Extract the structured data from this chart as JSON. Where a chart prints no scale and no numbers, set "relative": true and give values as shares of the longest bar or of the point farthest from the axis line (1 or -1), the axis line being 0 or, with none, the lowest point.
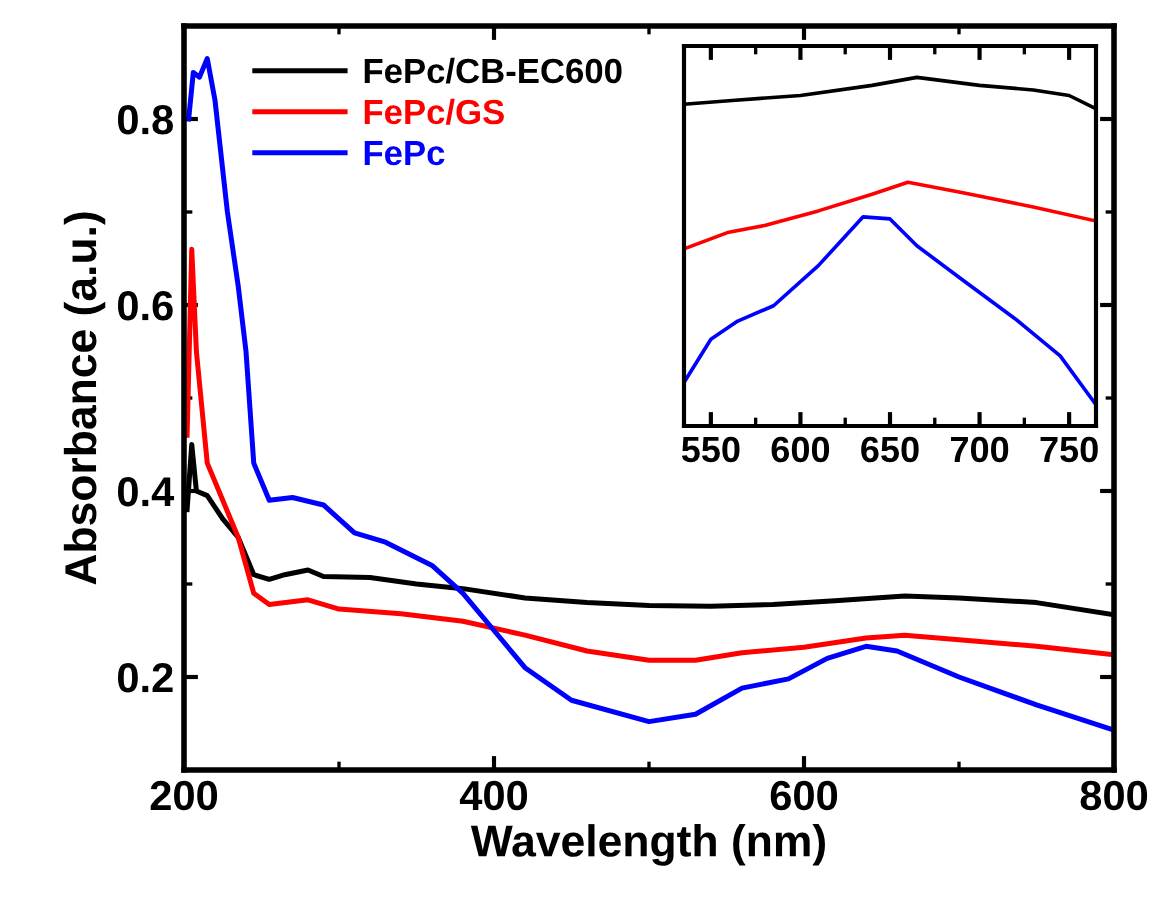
{
  "chart_data": [
    {
      "type": "line",
      "xlabel": "Wavelength (nm)",
      "ylabel": "Absorbance (a.u.)",
      "xlim": [
        200,
        800
      ],
      "xticks": [
        200,
        400,
        600,
        800
      ],
      "ylim": [
        0.1,
        0.9
      ],
      "yticks": [
        0.2,
        0.4,
        0.6,
        0.8
      ],
      "legend": "top left",
      "grid": false,
      "series": [
        {
          "name": "FePc/CB-EC600",
          "color": "#000000",
          "x": [
            202,
            205,
            208,
            215,
            225,
            235,
            245,
            255,
            265,
            280,
            290,
            320,
            350,
            380,
            420,
            460,
            500,
            540,
            580,
            620,
            665,
            700,
            750,
            800
          ],
          "values": [
            0.38,
            0.45,
            0.4,
            0.395,
            0.37,
            0.35,
            0.31,
            0.305,
            0.31,
            0.315,
            0.308,
            0.307,
            0.3,
            0.295,
            0.285,
            0.28,
            0.277,
            0.276,
            0.278,
            0.282,
            0.287,
            0.285,
            0.28,
            0.267
          ]
        },
        {
          "name": "FePc/GS",
          "color": "#ff0000",
          "x": [
            202,
            205,
            208,
            215,
            225,
            235,
            245,
            255,
            280,
            300,
            340,
            380,
            420,
            460,
            500,
            530,
            560,
            600,
            640,
            665,
            700,
            750,
            800
          ],
          "values": [
            0.46,
            0.66,
            0.55,
            0.43,
            0.39,
            0.35,
            0.29,
            0.278,
            0.283,
            0.273,
            0.268,
            0.26,
            0.245,
            0.228,
            0.218,
            0.218,
            0.226,
            0.232,
            0.242,
            0.245,
            0.24,
            0.233,
            0.224
          ]
        },
        {
          "name": "FePc",
          "color": "#0000ff",
          "x": [
            203,
            206,
            210,
            215,
            220,
            228,
            235,
            240,
            245,
            255,
            270,
            290,
            310,
            330,
            360,
            380,
            400,
            420,
            450,
            500,
            530,
            560,
            590,
            615,
            640,
            660,
            700,
            750,
            800
          ],
          "values": [
            0.8,
            0.85,
            0.845,
            0.865,
            0.82,
            0.7,
            0.62,
            0.55,
            0.43,
            0.39,
            0.393,
            0.385,
            0.355,
            0.345,
            0.32,
            0.29,
            0.25,
            0.21,
            0.175,
            0.152,
            0.16,
            0.188,
            0.198,
            0.22,
            0.233,
            0.228,
            0.2,
            0.17,
            0.143
          ]
        }
      ]
    },
    {
      "type": "line",
      "relative": true,
      "xlim": [
        535,
        765
      ],
      "xticks": [
        550,
        600,
        650,
        700,
        750
      ],
      "tick_labels": "x",
      "grid": false,
      "legend": false,
      "series": [
        {
          "color": "#000000",
          "x": [
            535,
            560,
            600,
            640,
            665,
            700,
            730,
            750,
            765
          ],
          "values": [
            0.923,
            0.933,
            0.948,
            0.977,
            1.0,
            0.977,
            0.964,
            0.948,
            0.91
          ]
        },
        {
          "color": "#ff0000",
          "x": [
            535,
            560,
            580,
            610,
            640,
            660,
            690,
            730,
            765
          ],
          "values": [
            0.508,
            0.556,
            0.575,
            0.617,
            0.665,
            0.699,
            0.67,
            0.628,
            0.588
          ]
        },
        {
          "color": "#0000ff",
          "x": [
            535,
            550,
            565,
            585,
            610,
            635,
            650,
            665,
            690,
            720,
            745,
            765
          ],
          "values": [
            0.125,
            0.249,
            0.301,
            0.345,
            0.46,
            0.6,
            0.594,
            0.517,
            0.421,
            0.307,
            0.201,
            0.061
          ]
        }
      ]
    }
  ]
}
